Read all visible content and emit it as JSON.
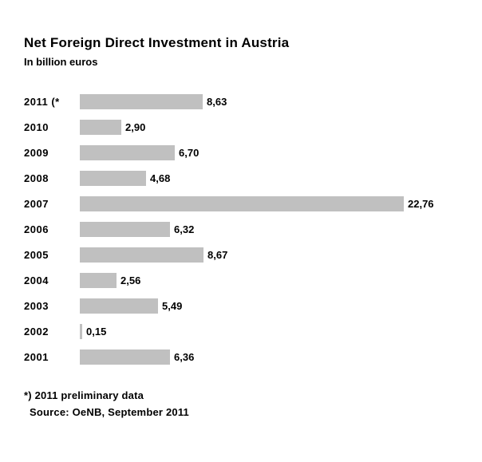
{
  "chart_data": {
    "type": "bar",
    "orientation": "horizontal",
    "title": "Net Foreign Direct Investment in Austria",
    "subtitle": "In billion euros",
    "categories": [
      "2011 (*",
      "2010",
      "2009",
      "2008",
      "2007",
      "2006",
      "2005",
      "2004",
      "2003",
      "2002",
      "2001"
    ],
    "values": [
      8.63,
      2.9,
      6.7,
      4.68,
      22.76,
      6.32,
      8.67,
      2.56,
      5.49,
      0.15,
      6.36
    ],
    "value_labels": [
      "8,63",
      "2,90",
      "6,70",
      "4,68",
      "22,76",
      "6,32",
      "8,67",
      "2,56",
      "5,49",
      "0,15",
      "6,36"
    ],
    "xlim": [
      0,
      23
    ],
    "grid": false,
    "legend": false,
    "bar_color": "#c0c0c0"
  },
  "footnotes": [
    "*) 2011 preliminary data",
    "Source: OeNB,  September 2011"
  ]
}
